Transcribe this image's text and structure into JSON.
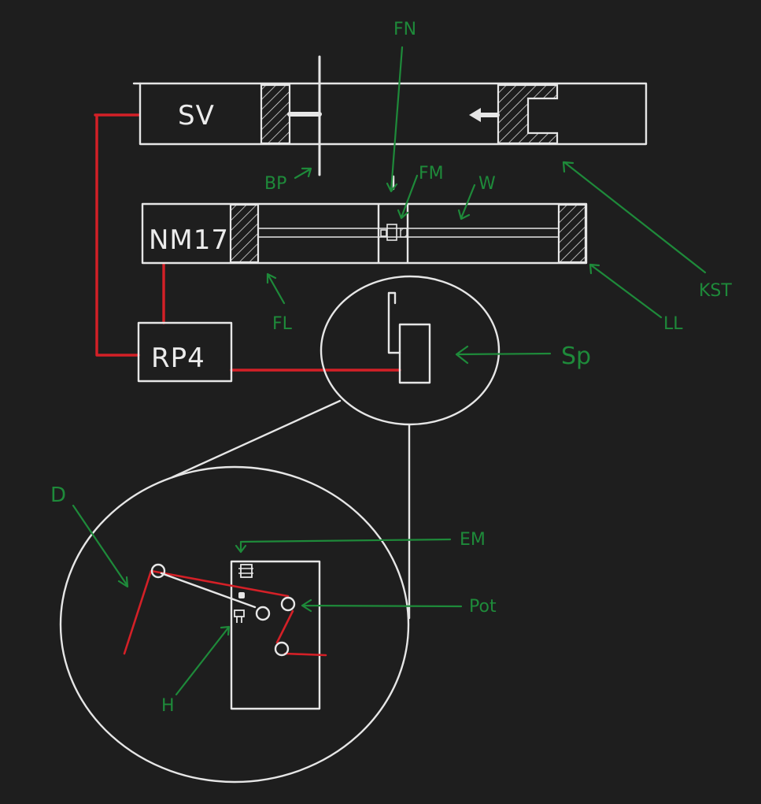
{
  "colors": {
    "background": "#1e1e1e",
    "ink": "#e6e6e6",
    "wire": "#d42027",
    "annotation": "#1e8a3a"
  },
  "boxes": {
    "sv": "SV",
    "nm17": "NM17",
    "rp4": "RP4"
  },
  "labels": {
    "fn": "FN",
    "bp": "BP",
    "fm": "FM",
    "w": "W",
    "fl": "FL",
    "kst": "KST",
    "ll": "LL",
    "sp": "Sp",
    "d": "D",
    "em": "EM",
    "pot": "Pot",
    "h": "H"
  }
}
